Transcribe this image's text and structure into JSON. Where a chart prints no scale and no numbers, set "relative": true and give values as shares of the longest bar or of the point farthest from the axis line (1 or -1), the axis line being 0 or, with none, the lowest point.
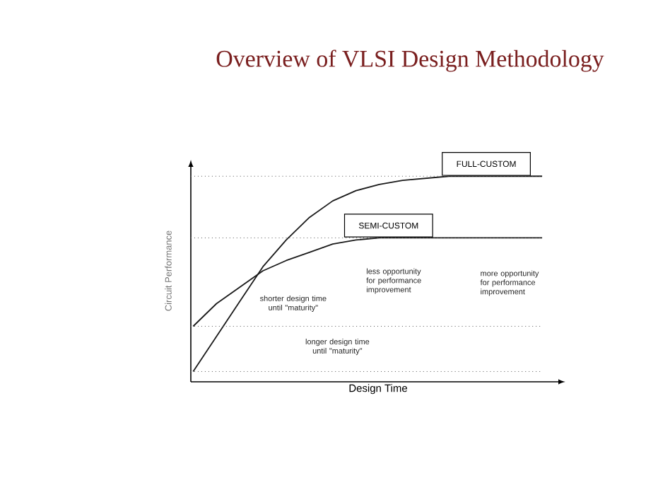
{
  "chart_data": {
    "type": "line",
    "title": "Overview of VLSI Design Methodology",
    "xlabel": "Design Time",
    "ylabel": "Circuit Performance",
    "relative": true,
    "marker": "none",
    "line_style": "solid",
    "categories": [
      null,
      null,
      null,
      null,
      null,
      null,
      null,
      null,
      null,
      null,
      null,
      null,
      null,
      null,
      null,
      null
    ],
    "series": [
      {
        "name": "FULL-CUSTOM",
        "color": "#1a1a1a",
        "values": [
          0.05,
          0.22,
          0.39,
          0.56,
          0.69,
          0.8,
          0.88,
          0.93,
          0.96,
          0.98,
          0.99,
          1.0,
          1.0,
          1.0,
          1.0,
          1.0
        ]
      },
      {
        "name": "SEMI-CUSTOM",
        "color": "#1a1a1a",
        "values": [
          0.27,
          0.38,
          0.46,
          0.54,
          0.59,
          0.63,
          0.67,
          0.69,
          0.7,
          0.7,
          0.7,
          0.7,
          0.7,
          0.7,
          0.7,
          0.7
        ]
      }
    ],
    "ref_lines": [
      {
        "axis": "y",
        "value": 0.05,
        "color": "#555555",
        "line_style": "dotted"
      },
      {
        "axis": "y",
        "value": 0.27,
        "color": "#555555",
        "line_style": "dotted"
      },
      {
        "axis": "y",
        "value": 0.7,
        "color": "#555555",
        "line_style": "dotted"
      },
      {
        "axis": "y",
        "value": 1.0,
        "color": "#555555",
        "line_style": "dotted"
      }
    ],
    "annotations": [
      "shorter design time until \"maturity\"",
      "longer design time until \"maturity\"",
      "less opportunity for performance improvement",
      "more opportunity for performance improvement"
    ]
  }
}
